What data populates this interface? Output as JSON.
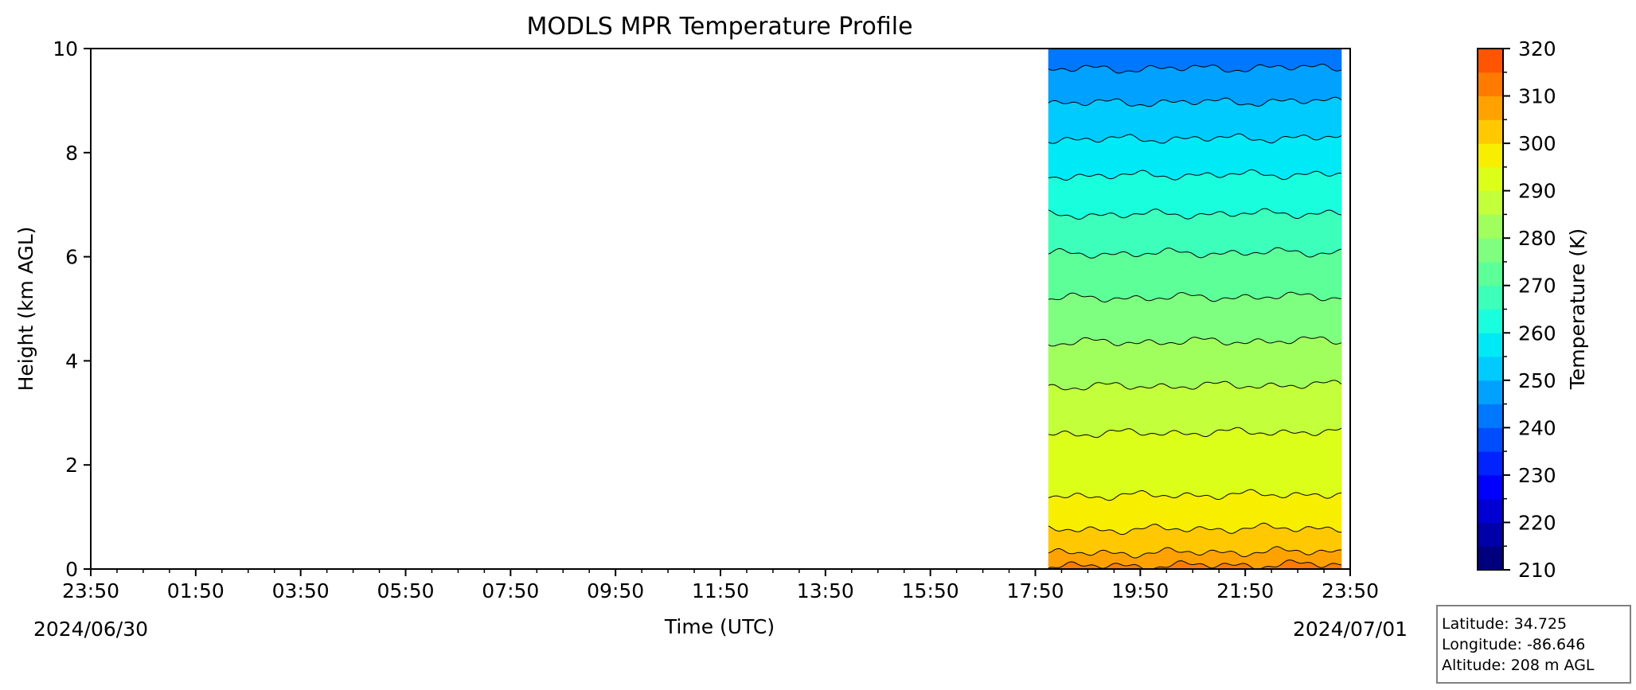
{
  "chart_data": {
    "type": "heatmap",
    "title": "MODLS MPR Temperature Profile",
    "xlabel": "Time (UTC)",
    "ylabel": "Height (km AGL)",
    "xlim": [
      "2024-06-30 23:50",
      "2024-07-01 23:50"
    ],
    "ylim": [
      0,
      10
    ],
    "x_tick_labels": [
      "23:50",
      "01:50",
      "03:50",
      "05:50",
      "07:50",
      "09:50",
      "11:50",
      "13:50",
      "15:50",
      "17:50",
      "19:50",
      "21:50",
      "23:50"
    ],
    "y_tick_labels": [
      "0",
      "2",
      "4",
      "6",
      "8",
      "10"
    ],
    "date_start_label": "2024/06/30",
    "date_end_label": "2024/07/01",
    "data_time_range": [
      "2024-07-01 18:05",
      "2024-07-01 23:40"
    ],
    "colorbar": {
      "label": "Temperature (K)",
      "range": [
        210,
        320
      ],
      "step": 5,
      "tick_labels": [
        "210",
        "220",
        "230",
        "240",
        "250",
        "260",
        "270",
        "280",
        "290",
        "300",
        "310",
        "320"
      ],
      "colors": [
        "#00007f",
        "#0000a8",
        "#0000d5",
        "#0000ff",
        "#0023ff",
        "#004dff",
        "#0077ff",
        "#00a1ff",
        "#00cbff",
        "#00e9f7",
        "#19ffde",
        "#3bffbb",
        "#5dff99",
        "#7fff7f",
        "#a1ff5d",
        "#c3ff3b",
        "#dcff1a",
        "#f7ee00",
        "#ffc800",
        "#ffa200",
        "#ff7b00",
        "#ff5500",
        "#ff2e00",
        "#f10700",
        "#c60000",
        "#9b0000",
        "#7f0000"
      ]
    },
    "contours_temperature": [
      310,
      305,
      300,
      295,
      290,
      285,
      280,
      275,
      270,
      265,
      260,
      255,
      250,
      245,
      240
    ],
    "contours_height_km": [
      0.05,
      0.3,
      0.75,
      1.4,
      2.6,
      3.5,
      4.35,
      5.2,
      6.05,
      6.8,
      7.55,
      8.25,
      8.95,
      9.6,
      10.4
    ],
    "legend_position": "none",
    "grid": false
  },
  "info_box": {
    "latitude": "Latitude: 34.725",
    "longitude": "Longitude: -86.646",
    "altitude": "Altitude: 208 m AGL"
  }
}
